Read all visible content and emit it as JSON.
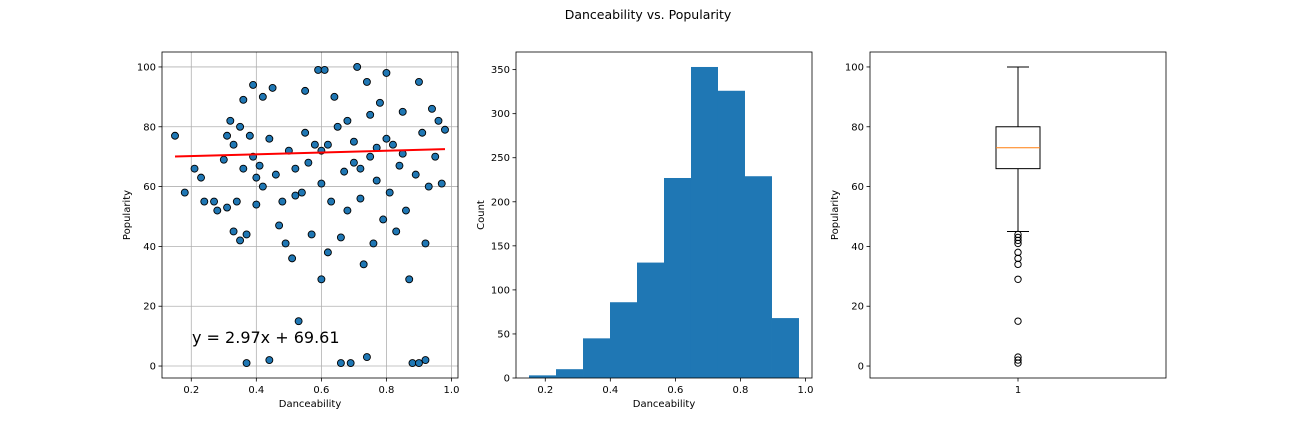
{
  "figure": {
    "title": "Danceability vs. Popularity"
  },
  "colors": {
    "points": "#1f77b4",
    "edge": "#000000",
    "fit_line": "#ff0000",
    "bars": "#1f77b4",
    "median": "#ff7f0e",
    "grid": "#b0b0b0"
  },
  "chart_data": [
    {
      "type": "scatter",
      "xlabel": "Danceability",
      "ylabel": "Popularity",
      "xlim": [
        0.11,
        1.02
      ],
      "ylim": [
        -4,
        105
      ],
      "xticks": [
        0.2,
        0.4,
        0.6,
        0.8,
        1.0
      ],
      "xtick_labels": [
        "0.2",
        "0.4",
        "0.6",
        "0.8",
        "1.0"
      ],
      "yticks": [
        0,
        20,
        40,
        60,
        80,
        100
      ],
      "ytick_labels": [
        "0",
        "20",
        "40",
        "60",
        "80",
        "100"
      ],
      "grid": true,
      "regression": {
        "slope": 2.97,
        "intercept": 69.61,
        "x_range": [
          0.15,
          0.98
        ]
      },
      "annotation": "y = 2.97x + 69.61",
      "points": [
        [
          0.15,
          77
        ],
        [
          0.18,
          58
        ],
        [
          0.21,
          66
        ],
        [
          0.23,
          63
        ],
        [
          0.24,
          55
        ],
        [
          0.27,
          55
        ],
        [
          0.28,
          52
        ],
        [
          0.3,
          69
        ],
        [
          0.31,
          77
        ],
        [
          0.31,
          53
        ],
        [
          0.32,
          82
        ],
        [
          0.33,
          74
        ],
        [
          0.33,
          45
        ],
        [
          0.34,
          55
        ],
        [
          0.35,
          42
        ],
        [
          0.35,
          80
        ],
        [
          0.36,
          89
        ],
        [
          0.36,
          66
        ],
        [
          0.37,
          44
        ],
        [
          0.37,
          1
        ],
        [
          0.38,
          77
        ],
        [
          0.39,
          94
        ],
        [
          0.39,
          70
        ],
        [
          0.4,
          54
        ],
        [
          0.4,
          63
        ],
        [
          0.41,
          67
        ],
        [
          0.42,
          90
        ],
        [
          0.42,
          60
        ],
        [
          0.44,
          2
        ],
        [
          0.44,
          76
        ],
        [
          0.45,
          93
        ],
        [
          0.46,
          64
        ],
        [
          0.47,
          47
        ],
        [
          0.48,
          55
        ],
        [
          0.49,
          41
        ],
        [
          0.5,
          72
        ],
        [
          0.51,
          36
        ],
        [
          0.52,
          57
        ],
        [
          0.52,
          66
        ],
        [
          0.53,
          15
        ],
        [
          0.54,
          58
        ],
        [
          0.55,
          92
        ],
        [
          0.56,
          68
        ],
        [
          0.57,
          44
        ],
        [
          0.58,
          74
        ],
        [
          0.59,
          99
        ],
        [
          0.6,
          29
        ],
        [
          0.6,
          61
        ],
        [
          0.61,
          99
        ],
        [
          0.62,
          38
        ],
        [
          0.63,
          55
        ],
        [
          0.64,
          90
        ],
        [
          0.66,
          1
        ],
        [
          0.66,
          43
        ],
        [
          0.67,
          65
        ],
        [
          0.68,
          52
        ],
        [
          0.69,
          1
        ],
        [
          0.7,
          75
        ],
        [
          0.71,
          100
        ],
        [
          0.72,
          56
        ],
        [
          0.73,
          34
        ],
        [
          0.74,
          3
        ],
        [
          0.74,
          95
        ],
        [
          0.75,
          70
        ],
        [
          0.76,
          41
        ],
        [
          0.77,
          62
        ],
        [
          0.78,
          88
        ],
        [
          0.79,
          49
        ],
        [
          0.8,
          98
        ],
        [
          0.81,
          58
        ],
        [
          0.82,
          74
        ],
        [
          0.83,
          45
        ],
        [
          0.84,
          67
        ],
        [
          0.85,
          85
        ],
        [
          0.86,
          52
        ],
        [
          0.87,
          29
        ],
        [
          0.88,
          1
        ],
        [
          0.89,
          64
        ],
        [
          0.9,
          1
        ],
        [
          0.9,
          95
        ],
        [
          0.91,
          78
        ],
        [
          0.92,
          41
        ],
        [
          0.92,
          2
        ],
        [
          0.93,
          60
        ],
        [
          0.94,
          86
        ],
        [
          0.95,
          70
        ],
        [
          0.96,
          82
        ],
        [
          0.97,
          61
        ],
        [
          0.98,
          79
        ],
        [
          0.55,
          78
        ],
        [
          0.6,
          72
        ],
        [
          0.65,
          80
        ],
        [
          0.7,
          68
        ],
        [
          0.75,
          84
        ],
        [
          0.8,
          76
        ],
        [
          0.85,
          71
        ],
        [
          0.62,
          74
        ],
        [
          0.68,
          82
        ],
        [
          0.72,
          66
        ],
        [
          0.77,
          73
        ]
      ]
    },
    {
      "type": "bar",
      "xlabel": "Danceability",
      "ylabel": "Count",
      "xlim": [
        0.11,
        1.02
      ],
      "ylim": [
        0,
        370
      ],
      "xticks": [
        0.2,
        0.4,
        0.6,
        0.8,
        1.0
      ],
      "xtick_labels": [
        "0.2",
        "0.4",
        "0.6",
        "0.8",
        "1.0"
      ],
      "yticks": [
        0,
        50,
        100,
        150,
        200,
        250,
        300,
        350
      ],
      "ytick_labels": [
        "0",
        "50",
        "100",
        "150",
        "200",
        "250",
        "300",
        "350"
      ],
      "bin_edges": [
        0.15,
        0.233,
        0.316,
        0.399,
        0.482,
        0.565,
        0.648,
        0.731,
        0.814,
        0.897,
        0.98
      ],
      "counts": [
        3,
        10,
        45,
        86,
        131,
        227,
        353,
        326,
        229,
        68
      ]
    },
    {
      "type": "box",
      "ylabel": "Popularity",
      "xtick_labels": [
        "1"
      ],
      "ylim": [
        -4,
        105
      ],
      "yticks": [
        0,
        20,
        40,
        60,
        80,
        100
      ],
      "ytick_labels": [
        "0",
        "20",
        "40",
        "60",
        "80",
        "100"
      ],
      "box": {
        "whisker_low": 45,
        "q1": 66,
        "median": 73,
        "q3": 80,
        "whisker_high": 100
      },
      "outliers": [
        44,
        43,
        42,
        41,
        38,
        36,
        34,
        29,
        15,
        3,
        2,
        1
      ]
    }
  ]
}
